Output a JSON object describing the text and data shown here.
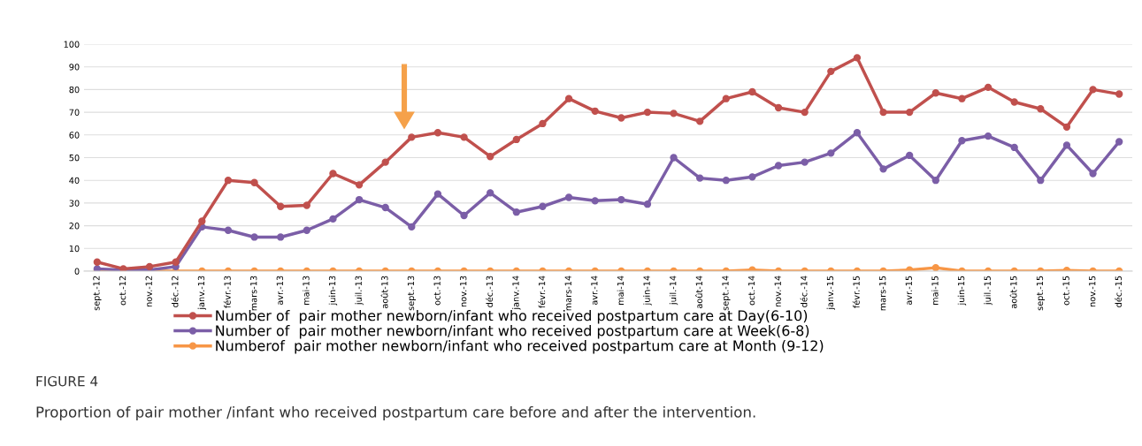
{
  "chart_data": {
    "type": "line",
    "categories": [
      "sept.-12",
      "oct.-12",
      "nov.-12",
      "déc.-12",
      "janv.-13",
      "févr.-13",
      "mars-13",
      "avr.-13",
      "mai-13",
      "juin-13",
      "juil.-13",
      "août-13",
      "sept.-13",
      "oct.-13",
      "nov.-13",
      "déc.-13",
      "janv.-14",
      "févr.-14",
      "mars-14",
      "avr.-14",
      "mai-14",
      "juin-14",
      "juil.-14",
      "août-14",
      "sept.-14",
      "oct.-14",
      "nov.-14",
      "déc.-14",
      "janv.-15",
      "févr.-15",
      "mars-15",
      "avr.-15",
      "mai-15",
      "juin-15",
      "juil.-15",
      "août-15",
      "sept.-15",
      "oct.-15",
      "nov.-15",
      "déc.-15"
    ],
    "series": [
      {
        "name": "Number of  pair mother newborn/infant who received postpartum care at Day(6-10)",
        "color": "#c0504d",
        "values": [
          4,
          1,
          2,
          4,
          22,
          40,
          39,
          28.5,
          29,
          43,
          38,
          48,
          59,
          61,
          59,
          50.5,
          58,
          65,
          76,
          70.5,
          67.5,
          70,
          69.5,
          66,
          76,
          79,
          72,
          70,
          88,
          94,
          70,
          70,
          78.5,
          76,
          81,
          74.5,
          71.5,
          63.5,
          80,
          78
        ]
      },
      {
        "name": "Number of  pair mother newborn/infant who received postpartum care at Week(6-8)",
        "color": "#7b5ea7",
        "values": [
          1,
          0.5,
          0.5,
          2,
          19.5,
          18,
          15,
          15,
          18,
          23,
          31.5,
          28,
          19.5,
          34,
          24.5,
          34.5,
          26,
          28.5,
          32.5,
          31,
          31.5,
          29.5,
          50,
          41,
          40,
          41.5,
          46.5,
          48,
          52,
          61,
          45,
          51,
          40,
          57.5,
          59.5,
          54.5,
          40,
          55.5,
          43,
          57
        ]
      },
      {
        "name": "Numberof  pair mother newborn/infant who received postpartum care at Month (9-12)",
        "color": "#f79646",
        "values": [
          0,
          0,
          0,
          0,
          0,
          0,
          0,
          0,
          0,
          0,
          0,
          0,
          0,
          0,
          0,
          0,
          0,
          0,
          0,
          0,
          0,
          0,
          0,
          0,
          0,
          0.5,
          0,
          0,
          0,
          0,
          0,
          0.5,
          1.5,
          0,
          0,
          0,
          0,
          0.3,
          0,
          0
        ]
      }
    ],
    "ylim": [
      0,
      100
    ],
    "yticks": [
      0,
      10,
      20,
      30,
      40,
      50,
      60,
      70,
      80,
      90,
      100
    ],
    "grid": "y",
    "legend": "bottom",
    "marker": "circle",
    "line_style": "solid",
    "annotations": [
      "FIGURE 4",
      "Proportion of pair mother /infant who received postpartum care before and after the intervention."
    ]
  }
}
